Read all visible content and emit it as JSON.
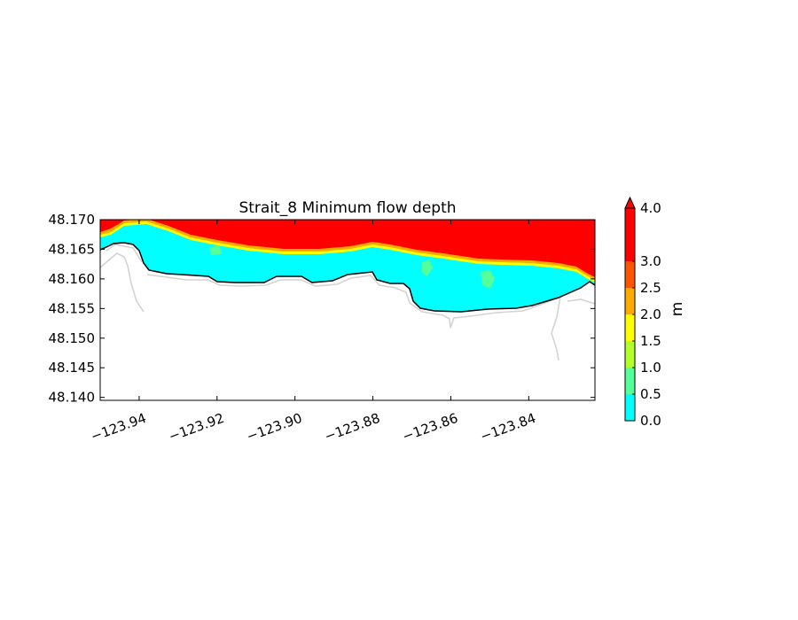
{
  "chart_data": {
    "type": "contour-map",
    "title": "Strait_8 Minimum flow depth",
    "xlim": [
      -123.95,
      -123.823
    ],
    "ylim": [
      48.1395,
      48.17
    ],
    "x_ticks": [
      -123.94,
      -123.92,
      -123.9,
      -123.88,
      -123.86,
      -123.84
    ],
    "x_tick_labels": [
      "−123.94",
      "−123.92",
      "−123.90",
      "−123.88",
      "−123.86",
      "−123.84"
    ],
    "y_ticks": [
      48.17,
      48.165,
      48.16,
      48.155,
      48.15,
      48.145,
      48.14
    ],
    "y_tick_labels": [
      "48.170",
      "48.165",
      "48.160",
      "48.155",
      "48.150",
      "48.145",
      "48.140"
    ],
    "xlabel": "",
    "ylabel": "",
    "grid": false,
    "colorbar": {
      "label": "m",
      "levels": [
        0.0,
        0.5,
        1.0,
        1.5,
        2.0,
        2.5,
        3.0,
        4.0
      ],
      "tick_labels": [
        "0.0",
        "0.5",
        "1.0",
        "1.5",
        "2.0",
        "2.5",
        "3.0",
        "4.0"
      ],
      "colors": [
        "#00ffff",
        "#55ff99",
        "#b2ff2a",
        "#ffff00",
        "#ffaa00",
        "#ff5500",
        "#ff0000"
      ],
      "extend": "max"
    },
    "coastline_color": "#000000",
    "secondary_contour_color": "#d3d3d3"
  }
}
